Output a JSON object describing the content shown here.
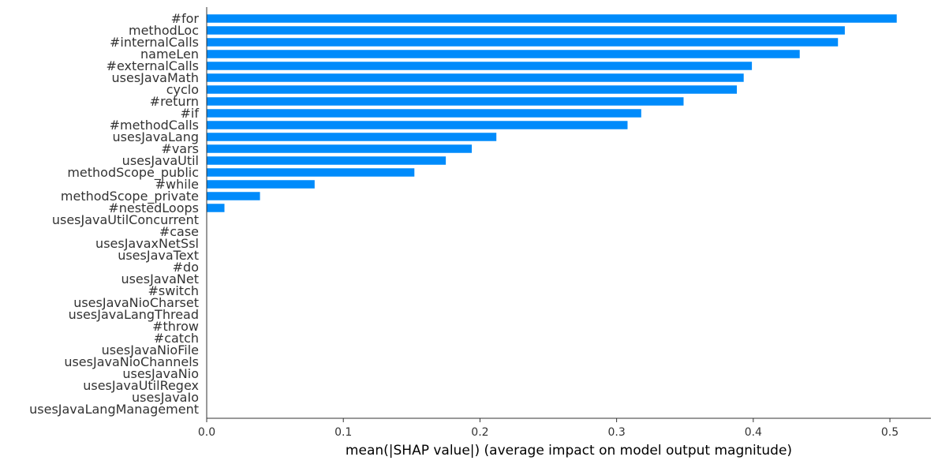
{
  "chart_data": {
    "type": "bar",
    "orientation": "horizontal",
    "title": "",
    "xlabel": "mean(|SHAP value|) (average impact on model output magnitude)",
    "ylabel": "",
    "xlim": [
      0,
      0.53
    ],
    "xticks": [
      0.0,
      0.1,
      0.2,
      0.3,
      0.4,
      0.5
    ],
    "xtick_labels": [
      "0.0",
      "0.1",
      "0.2",
      "0.3",
      "0.4",
      "0.5"
    ],
    "grid": false,
    "legend": "none",
    "bar_color": "#008bfb",
    "categories": [
      "#for",
      "methodLoc",
      "#internalCalls",
      "nameLen",
      "#externalCalls",
      "usesJavaMath",
      "cyclo",
      "#return",
      "#if",
      "#methodCalls",
      "usesJavaLang",
      "#vars",
      "usesJavaUtil",
      "methodScope_public",
      "#while",
      "methodScope_private",
      "#nestedLoops",
      "usesJavaUtilConcurrent",
      "#case",
      "usesJavaxNetSsl",
      "usesJavaText",
      "#do",
      "usesJavaNet",
      "#switch",
      "usesJavaNioCharset",
      "usesJavaLangThread",
      "#throw",
      "#catch",
      "usesJavaNioFile",
      "usesJavaNioChannels",
      "usesJavaNio",
      "usesJavaUtilRegex",
      "usesJavaIo",
      "usesJavaLangManagement"
    ],
    "values": [
      0.505,
      0.467,
      0.462,
      0.434,
      0.399,
      0.393,
      0.388,
      0.349,
      0.318,
      0.308,
      0.212,
      0.194,
      0.175,
      0.152,
      0.079,
      0.039,
      0.013,
      0,
      0,
      0,
      0,
      0,
      0,
      0,
      0,
      0,
      0,
      0,
      0,
      0,
      0,
      0,
      0,
      0
    ]
  }
}
